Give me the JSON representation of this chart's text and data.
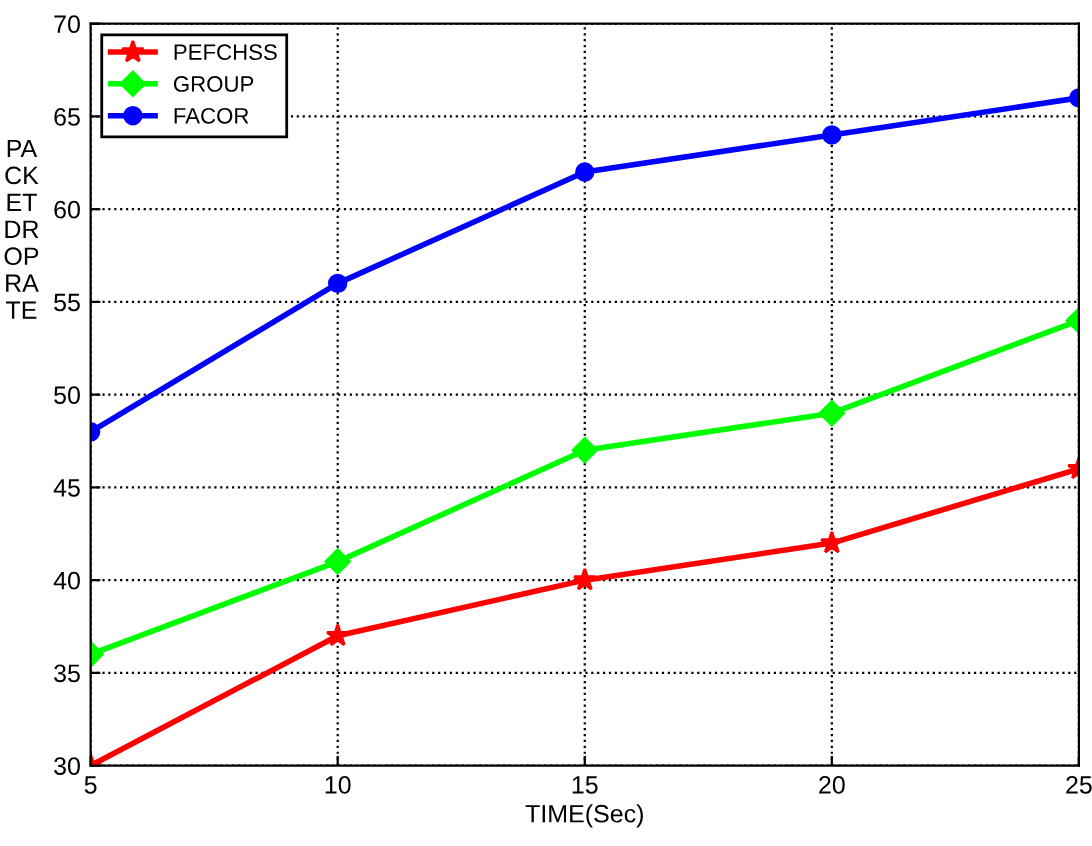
{
  "chart_data": {
    "type": "line",
    "xlabel": "TIME(Sec)",
    "ylabel": "PA\nCK\nET\nDR\nOP\nRA\nTE",
    "x": [
      5,
      10,
      15,
      20,
      25
    ],
    "series": [
      {
        "name": "PEFCHSS",
        "color": "#ff0000",
        "marker": "star",
        "values": [
          30,
          37,
          40,
          42,
          46
        ]
      },
      {
        "name": "GROUP",
        "color": "#00ff00",
        "marker": "diamond",
        "values": [
          36,
          41,
          47,
          49,
          54
        ]
      },
      {
        "name": "FACOR",
        "color": "#0000ff",
        "marker": "circle",
        "values": [
          48,
          56,
          62,
          64,
          66
        ]
      }
    ],
    "xlim": [
      5,
      25
    ],
    "xticks": [
      5,
      10,
      15,
      20,
      25
    ],
    "ylim": [
      30,
      70
    ],
    "yticks": [
      30,
      35,
      40,
      45,
      50,
      55,
      60,
      65,
      70
    ],
    "grid": true,
    "legend": "top left",
    "line_style": "solid"
  }
}
